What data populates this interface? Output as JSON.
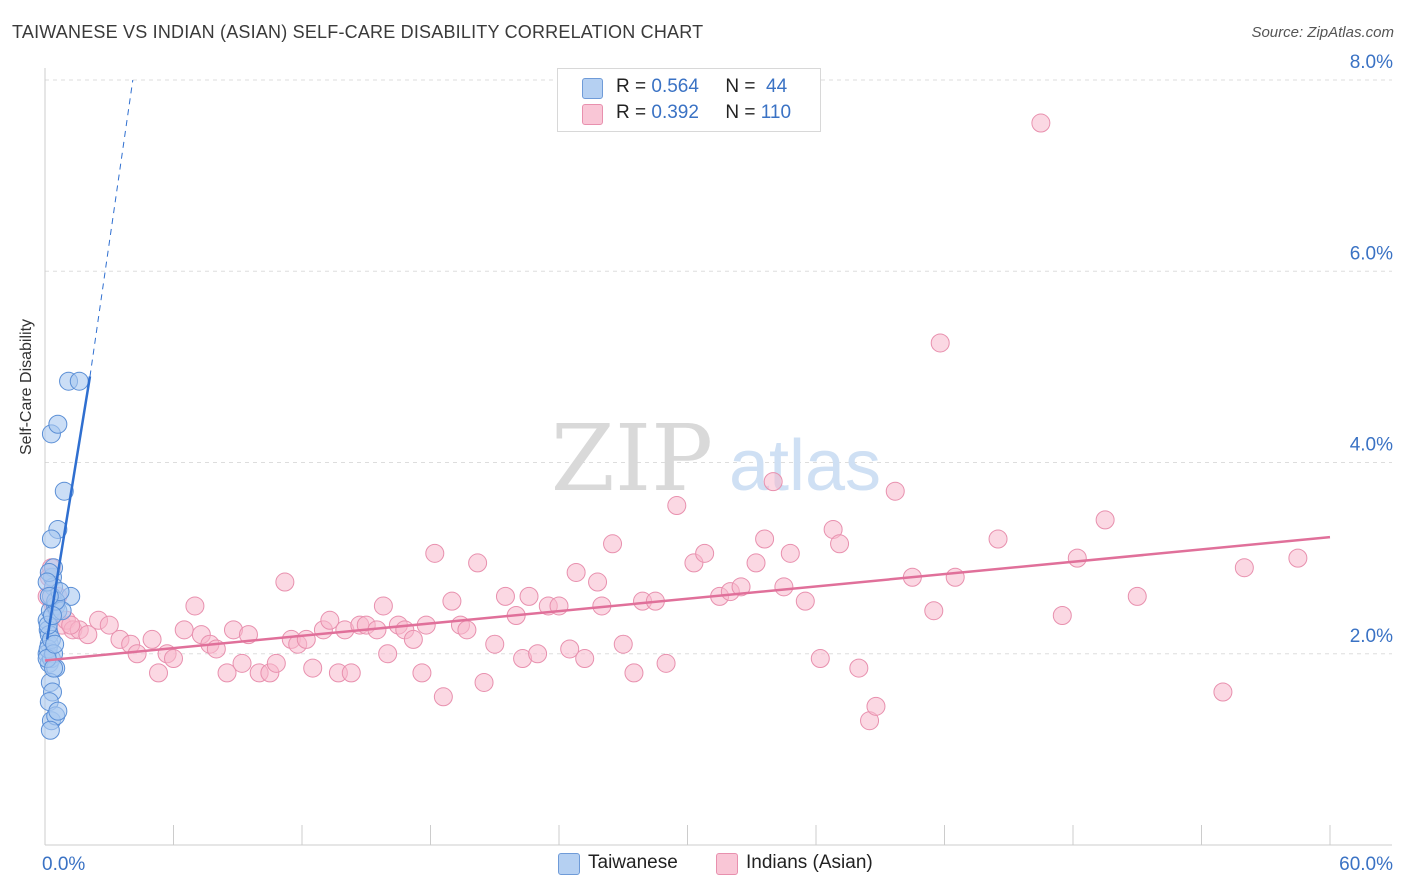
{
  "header": {
    "title": "TAIWANESE VS INDIAN (ASIAN) SELF-CARE DISABILITY CORRELATION CHART",
    "source": "Source: ZipAtlas.com"
  },
  "watermark": {
    "zip": "ZIP",
    "atlas": "atlas"
  },
  "legend": {
    "rows": [
      {
        "r_label": "R =",
        "r_value": "0.564",
        "n_label": "N =",
        "n_value": "44"
      },
      {
        "r_label": "R =",
        "r_value": "0.392",
        "n_label": "N =",
        "n_value": "110"
      }
    ]
  },
  "colors": {
    "taiwanese_fill": "#a8c8f0",
    "taiwanese_stroke": "#5b8fd6",
    "taiwanese_line": "#2f6fd0",
    "indian_fill": "#f7b8cc",
    "indian_stroke": "#e890ae",
    "indian_line": "#e0709a",
    "tick_label": "#3a72c4",
    "grid": "#dddddd"
  },
  "chart_data": {
    "type": "scatter",
    "title": "TAIWANESE VS INDIAN (ASIAN) SELF-CARE DISABILITY CORRELATION CHART",
    "ylabel": "Self-Care Disability",
    "xlabel": "",
    "xlim": [
      0,
      60
    ],
    "ylim": [
      0,
      8
    ],
    "x_tick_labels": [
      "0.0%",
      "60.0%"
    ],
    "y_ticks": [
      2,
      4,
      6,
      8
    ],
    "y_tick_labels": [
      "2.0%",
      "4.0%",
      "6.0%",
      "8.0%"
    ],
    "legend_position": "top-center",
    "series": [
      {
        "name": "Taiwanese",
        "r": 0.564,
        "n": 44,
        "points": [
          [
            0.1,
            2.35
          ],
          [
            0.15,
            2.25
          ],
          [
            0.2,
            2.1
          ],
          [
            0.1,
            2.0
          ],
          [
            0.2,
            1.9
          ],
          [
            0.3,
            1.95
          ],
          [
            0.25,
            2.45
          ],
          [
            0.35,
            2.8
          ],
          [
            0.4,
            2.7
          ],
          [
            0.3,
            2.6
          ],
          [
            0.5,
            2.5
          ],
          [
            0.6,
            2.45
          ],
          [
            0.2,
            2.2
          ],
          [
            0.15,
            2.05
          ],
          [
            0.3,
            2.15
          ],
          [
            0.4,
            2.0
          ],
          [
            0.5,
            1.85
          ],
          [
            0.1,
            1.95
          ],
          [
            0.25,
            1.7
          ],
          [
            0.35,
            1.6
          ],
          [
            0.2,
            1.5
          ],
          [
            0.3,
            1.3
          ],
          [
            0.5,
            1.35
          ],
          [
            0.25,
            1.2
          ],
          [
            0.6,
            1.4
          ],
          [
            0.4,
            1.85
          ],
          [
            0.15,
            2.3
          ],
          [
            0.45,
            2.1
          ],
          [
            0.3,
            4.3
          ],
          [
            0.6,
            4.4
          ],
          [
            0.9,
            3.7
          ],
          [
            1.1,
            4.85
          ],
          [
            1.6,
            4.85
          ],
          [
            0.6,
            3.3
          ],
          [
            0.3,
            3.2
          ],
          [
            1.2,
            2.6
          ],
          [
            0.8,
            2.45
          ],
          [
            0.4,
            2.9
          ],
          [
            0.2,
            2.85
          ],
          [
            0.5,
            2.55
          ],
          [
            0.7,
            2.65
          ],
          [
            0.1,
            2.75
          ],
          [
            0.2,
            2.6
          ],
          [
            0.35,
            2.4
          ]
        ],
        "trend": {
          "x": [
            0.1,
            2.1
          ],
          "y": [
            2.15,
            4.9
          ],
          "extended_to": [
            4.1,
            8.0
          ]
        }
      },
      {
        "name": "Indians (Asian)",
        "r": 0.392,
        "n": 110,
        "points": [
          [
            0.3,
            2.9
          ],
          [
            0.6,
            2.6
          ],
          [
            0.8,
            2.3
          ],
          [
            1.0,
            2.35
          ],
          [
            1.3,
            2.25
          ],
          [
            1.6,
            2.25
          ],
          [
            2.0,
            2.2
          ],
          [
            2.5,
            2.35
          ],
          [
            3.0,
            2.3
          ],
          [
            3.5,
            2.15
          ],
          [
            4.0,
            2.1
          ],
          [
            4.3,
            2.0
          ],
          [
            5.0,
            2.15
          ],
          [
            5.3,
            1.8
          ],
          [
            5.7,
            2.0
          ],
          [
            6.0,
            1.95
          ],
          [
            6.5,
            2.25
          ],
          [
            7.0,
            2.5
          ],
          [
            7.3,
            2.2
          ],
          [
            7.7,
            2.1
          ],
          [
            8.0,
            2.05
          ],
          [
            8.5,
            1.8
          ],
          [
            8.8,
            2.25
          ],
          [
            9.2,
            1.9
          ],
          [
            9.5,
            2.2
          ],
          [
            10.0,
            1.8
          ],
          [
            10.5,
            1.8
          ],
          [
            10.8,
            1.9
          ],
          [
            11.2,
            2.75
          ],
          [
            11.5,
            2.15
          ],
          [
            11.8,
            2.1
          ],
          [
            12.2,
            2.15
          ],
          [
            12.5,
            1.85
          ],
          [
            13.0,
            2.25
          ],
          [
            13.3,
            2.35
          ],
          [
            13.7,
            1.8
          ],
          [
            14.0,
            2.25
          ],
          [
            14.3,
            1.8
          ],
          [
            14.7,
            2.3
          ],
          [
            15.0,
            2.3
          ],
          [
            15.5,
            2.25
          ],
          [
            15.8,
            2.5
          ],
          [
            16.0,
            2.0
          ],
          [
            16.5,
            2.3
          ],
          [
            16.8,
            2.25
          ],
          [
            17.2,
            2.15
          ],
          [
            17.6,
            1.8
          ],
          [
            17.8,
            2.3
          ],
          [
            18.2,
            3.05
          ],
          [
            18.6,
            1.55
          ],
          [
            19.0,
            2.55
          ],
          [
            19.4,
            2.3
          ],
          [
            19.7,
            2.25
          ],
          [
            20.2,
            2.95
          ],
          [
            20.5,
            1.7
          ],
          [
            21.0,
            2.1
          ],
          [
            21.5,
            2.6
          ],
          [
            22.0,
            2.4
          ],
          [
            22.3,
            1.95
          ],
          [
            22.6,
            2.6
          ],
          [
            23.0,
            2.0
          ],
          [
            23.5,
            2.5
          ],
          [
            24.0,
            2.5
          ],
          [
            24.5,
            2.05
          ],
          [
            24.8,
            2.85
          ],
          [
            25.2,
            1.95
          ],
          [
            25.8,
            2.75
          ],
          [
            26.0,
            2.5
          ],
          [
            26.5,
            3.15
          ],
          [
            27.0,
            2.1
          ],
          [
            27.5,
            1.8
          ],
          [
            27.9,
            2.55
          ],
          [
            28.5,
            2.55
          ],
          [
            29.0,
            1.9
          ],
          [
            29.5,
            3.55
          ],
          [
            30.3,
            2.95
          ],
          [
            30.8,
            3.05
          ],
          [
            31.5,
            2.6
          ],
          [
            32.0,
            2.65
          ],
          [
            32.5,
            2.7
          ],
          [
            33.2,
            2.95
          ],
          [
            33.6,
            3.2
          ],
          [
            34.0,
            3.8
          ],
          [
            34.5,
            2.7
          ],
          [
            34.8,
            3.05
          ],
          [
            35.5,
            2.55
          ],
          [
            36.2,
            1.95
          ],
          [
            36.8,
            3.3
          ],
          [
            37.1,
            3.15
          ],
          [
            38.0,
            1.85
          ],
          [
            38.5,
            1.3
          ],
          [
            38.8,
            1.45
          ],
          [
            39.7,
            3.7
          ],
          [
            40.5,
            2.8
          ],
          [
            41.5,
            2.45
          ],
          [
            41.8,
            5.25
          ],
          [
            42.5,
            2.8
          ],
          [
            44.5,
            3.2
          ],
          [
            46.5,
            7.55
          ],
          [
            47.5,
            2.4
          ],
          [
            48.2,
            3.0
          ],
          [
            49.5,
            3.4
          ],
          [
            51.0,
            2.6
          ],
          [
            55.0,
            1.6
          ],
          [
            56.0,
            2.9
          ],
          [
            58.5,
            3.0
          ],
          [
            0.1,
            2.6
          ],
          [
            0.4,
            2.5
          ],
          [
            1.2,
            2.3
          ],
          [
            0.2,
            2.8
          ]
        ],
        "trend": {
          "x": [
            0,
            60
          ],
          "y": [
            1.93,
            3.22
          ]
        }
      }
    ]
  },
  "bottom_legend": [
    {
      "label": "Taiwanese"
    },
    {
      "label": "Indians (Asian)"
    }
  ]
}
